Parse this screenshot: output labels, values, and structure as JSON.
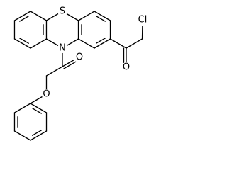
{
  "atoms": {
    "sulfur": "S",
    "nitrogen": "N",
    "ketone_oxygen": "O",
    "amide_oxygen": "O",
    "ether_oxygen": "O",
    "chlorine": "Cl"
  }
}
